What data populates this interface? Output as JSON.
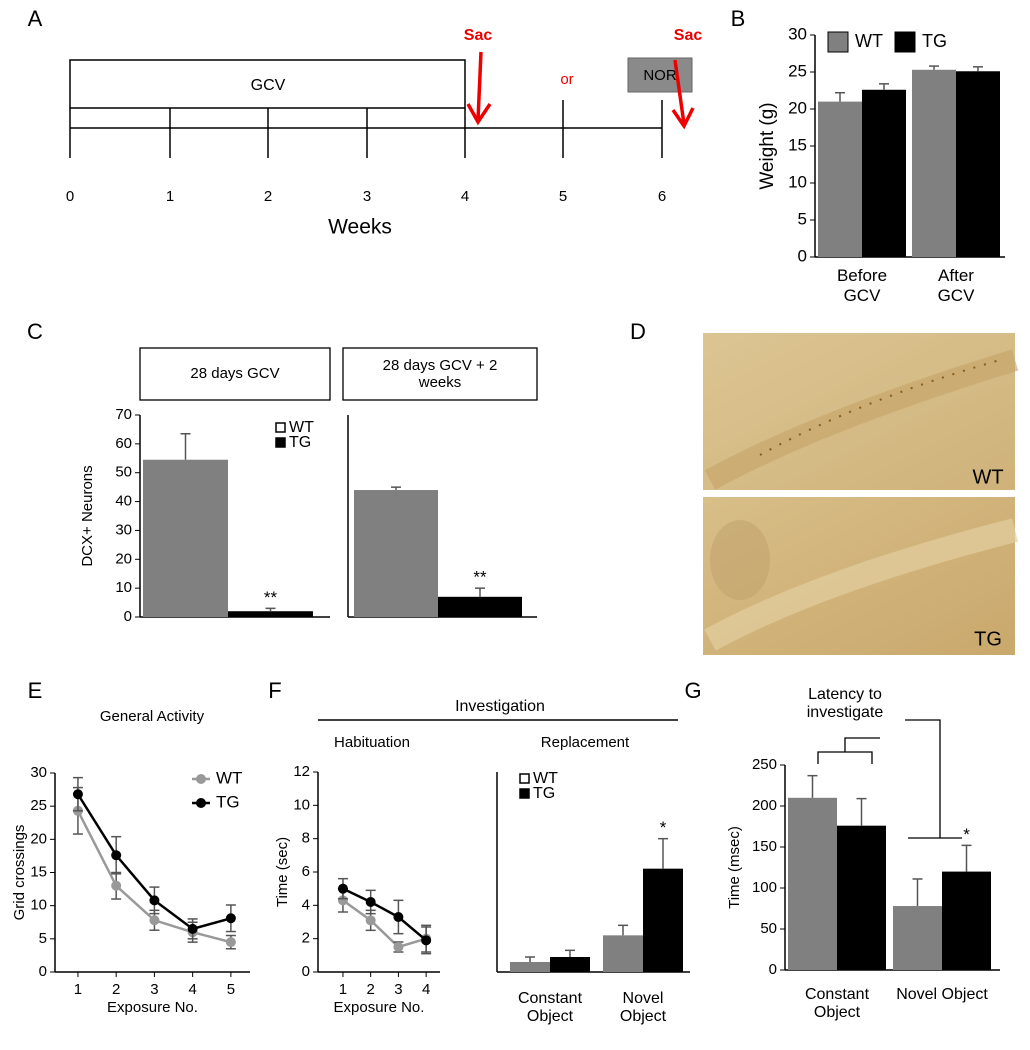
{
  "figure": {
    "panel_labels": [
      "A",
      "B",
      "C",
      "D",
      "E",
      "F",
      "G"
    ],
    "timeline": {
      "bar_label": "GCV",
      "weeks": [
        0,
        1,
        2,
        3,
        4,
        5,
        6
      ],
      "xlabel": "Weeks",
      "sac": [
        "Sac",
        "Sac"
      ],
      "or": "or",
      "test": "NOR"
    },
    "images": [
      "WT",
      "TG"
    ],
    "investigation": "Investigation"
  },
  "chart_data": [
    {
      "type": "bar",
      "ylabel": "Weight (g)",
      "categories": [
        "Before GCV",
        "After GCV"
      ],
      "series": [
        {
          "name": "WT",
          "color": "#808080",
          "values": [
            21,
            25.3
          ],
          "errors": [
            1.2,
            0.5
          ]
        },
        {
          "name": "TG",
          "color": "#000000",
          "values": [
            22.6,
            25.1
          ],
          "errors": [
            0.8,
            0.6
          ]
        }
      ],
      "ylim": [
        0,
        30
      ],
      "yticks": [
        0,
        5,
        10,
        15,
        20,
        25,
        30
      ]
    },
    {
      "type": "bar",
      "title": "28 days GCV",
      "ylabel": "DCX+ Neurons",
      "series": [
        {
          "name": "WT",
          "color": "#808080",
          "legend_color": "#ffffff",
          "values": [
            54.5
          ],
          "errors": [
            9
          ]
        },
        {
          "name": "TG",
          "color": "#000000",
          "values": [
            2
          ],
          "errors": [
            1
          ]
        }
      ],
      "annotation": "**",
      "ylim": [
        0,
        70
      ],
      "yticks": [
        0,
        10,
        20,
        30,
        40,
        50,
        60,
        70
      ]
    },
    {
      "type": "bar",
      "title": "28 days GCV + 2 weeks",
      "series": [
        {
          "color": "#808080",
          "values": [
            44
          ],
          "errors": [
            1
          ]
        },
        {
          "color": "#000000",
          "values": [
            7
          ],
          "errors": [
            3
          ]
        }
      ],
      "annotation": "**",
      "ylim": [
        0,
        70
      ]
    },
    {
      "type": "line",
      "title": "General Activity",
      "xlabel": "Exposure No.",
      "ylabel": "Grid crossings",
      "x": [
        1,
        2,
        3,
        4,
        5
      ],
      "xlim": [
        0.4,
        5.5
      ],
      "xticks": [
        1,
        2,
        3,
        4,
        5
      ],
      "ylim": [
        0,
        30
      ],
      "yticks": [
        0,
        5,
        10,
        15,
        20,
        25,
        30
      ],
      "series": [
        {
          "name": "WT",
          "color": "#999999",
          "values": [
            24.3,
            13,
            7.8,
            6,
            4.5
          ],
          "errors": [
            3.5,
            2,
            1.5,
            1.5,
            1
          ]
        },
        {
          "name": "TG",
          "color": "#000000",
          "values": [
            26.8,
            17.6,
            10.8,
            6.5,
            8.1
          ],
          "errors": [
            2.5,
            2.8,
            2,
            1.5,
            2
          ]
        }
      ]
    },
    {
      "type": "line",
      "title": "Habituation",
      "xlabel": "Exposure No.",
      "ylabel": "Time (sec)",
      "x": [
        1,
        2,
        3,
        4
      ],
      "xlim": [
        0.1,
        4.5
      ],
      "xticks": [
        1,
        2,
        3,
        4
      ],
      "ylim": [
        0,
        12
      ],
      "yticks": [
        0,
        2,
        4,
        6,
        8,
        10,
        12
      ],
      "series": [
        {
          "color": "#999999",
          "values": [
            4.3,
            3.1,
            1.5,
            2
          ],
          "errors": [
            0.7,
            0.6,
            0.3,
            0.8
          ]
        },
        {
          "color": "#000000",
          "values": [
            5,
            4.2,
            3.3,
            1.9
          ],
          "errors": [
            0.6,
            0.7,
            1,
            0.8
          ]
        }
      ]
    },
    {
      "type": "bar",
      "title": "Replacement",
      "categories": [
        "Constant Object",
        "Novel Object"
      ],
      "series": [
        {
          "name": "WT",
          "color": "#808080",
          "legend_color": "#ffffff",
          "values": [
            0.6,
            2.2
          ],
          "errors": [
            0.3,
            0.6
          ]
        },
        {
          "name": "TG",
          "color": "#000000",
          "values": [
            0.9,
            6.2
          ],
          "errors": [
            0.4,
            1.8
          ]
        }
      ],
      "annotation": "*",
      "ylim": [
        0,
        12
      ]
    },
    {
      "type": "bar",
      "title": "Latency to investigate",
      "ylabel": "Time (msec)",
      "categories": [
        "Constant Object",
        "Novel Object"
      ],
      "series": [
        {
          "color": "#808080",
          "values": [
            210,
            78
          ],
          "errors": [
            27,
            33
          ]
        },
        {
          "color": "#000000",
          "values": [
            176,
            120
          ],
          "errors": [
            33,
            32
          ]
        }
      ],
      "annotation": "*",
      "ylim": [
        0,
        250
      ],
      "yticks": [
        0,
        50,
        100,
        150,
        200,
        250
      ]
    }
  ]
}
